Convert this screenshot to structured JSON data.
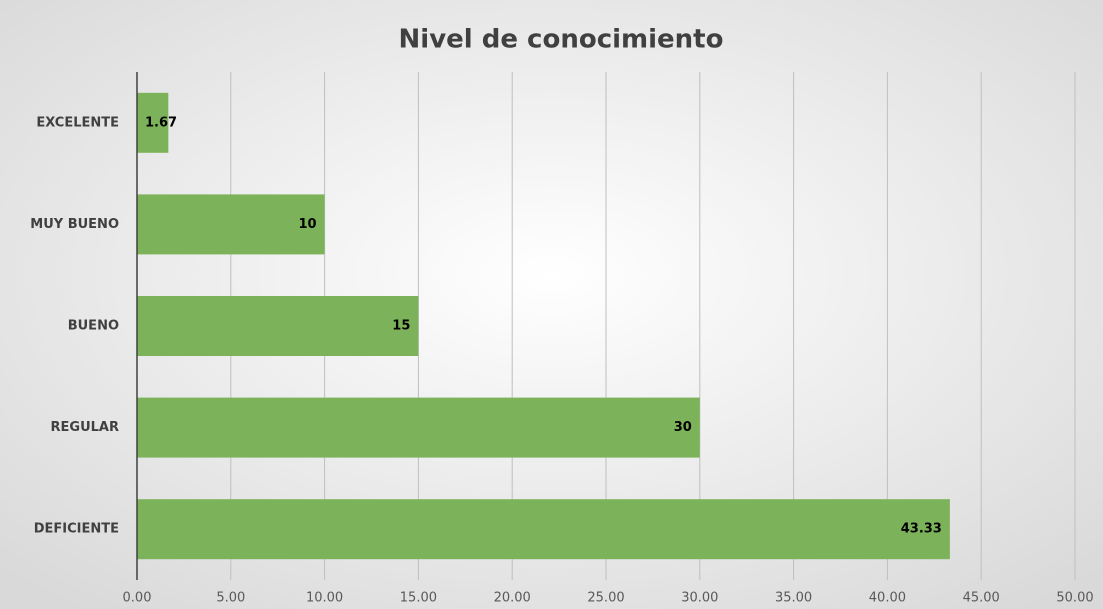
{
  "chart_data": {
    "type": "bar",
    "orientation": "horizontal",
    "title": "Nivel de conocimiento",
    "categories": [
      "EXCELENTE",
      "MUY BUENO",
      "BUENO",
      "REGULAR",
      "DEFICIENTE"
    ],
    "values": [
      1.67,
      10,
      15,
      30,
      43.33
    ],
    "color": "#7cb35a",
    "xlim": [
      0,
      50
    ],
    "xticks": [
      {
        "value": 0,
        "label": "0.00"
      },
      {
        "value": 5,
        "label": "5.00"
      },
      {
        "value": 10,
        "label": "10.00"
      },
      {
        "value": 15,
        "label": "15.00"
      },
      {
        "value": 20,
        "label": "20.00"
      },
      {
        "value": 25,
        "label": "25.00"
      },
      {
        "value": 30,
        "label": "30.00"
      },
      {
        "value": 35,
        "label": "35.00"
      },
      {
        "value": 40,
        "label": "40.00"
      },
      {
        "value": 45,
        "label": "45.00"
      },
      {
        "value": 50,
        "label": "50.00"
      }
    ],
    "grid": true
  }
}
